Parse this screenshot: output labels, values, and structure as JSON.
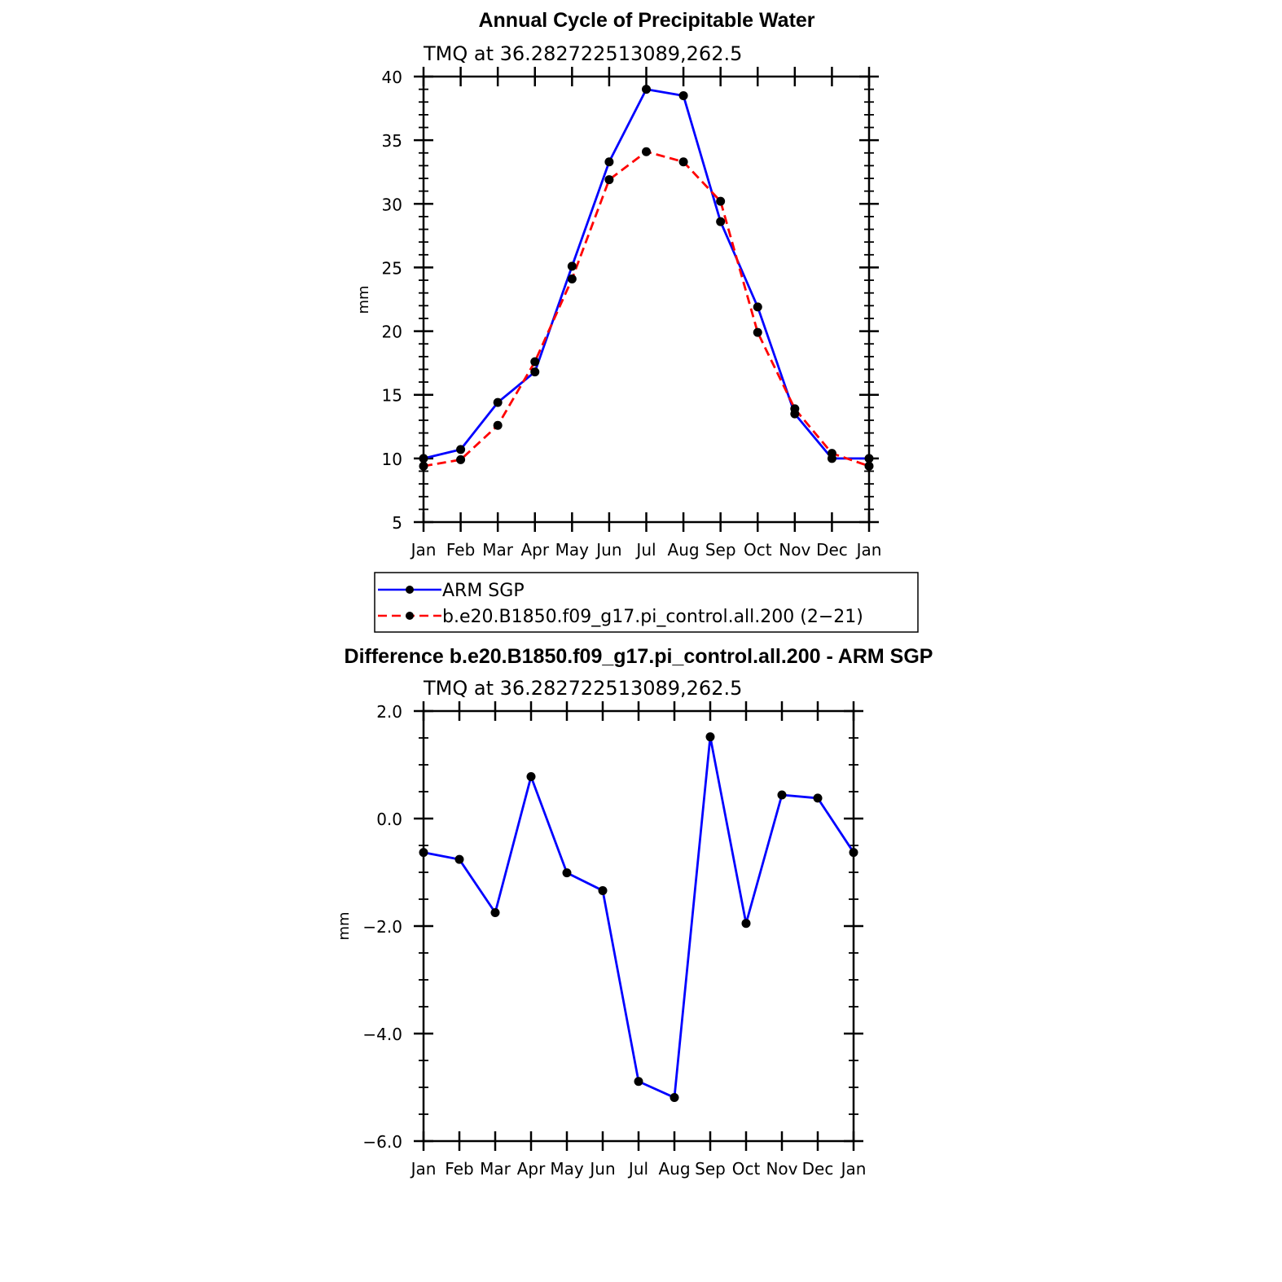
{
  "chart_data": [
    {
      "type": "line",
      "title": "Annual Cycle of Precipitable Water",
      "subtitle": "TMQ at 36.282722513089,262.5",
      "ylabel": "mm",
      "xlabel": "",
      "categories": [
        "Jan",
        "Feb",
        "Mar",
        "Apr",
        "May",
        "Jun",
        "Jul",
        "Aug",
        "Sep",
        "Oct",
        "Nov",
        "Dec",
        "Jan"
      ],
      "ylim": [
        5,
        40
      ],
      "yticks": [
        "5",
        "10",
        "15",
        "20",
        "25",
        "30",
        "35",
        "40"
      ],
      "ytick_values": [
        5,
        10,
        15,
        20,
        25,
        30,
        35,
        40
      ],
      "series": [
        {
          "name": "ARM SGP",
          "color": "#0000ff",
          "dash": "solid",
          "values": [
            10.0,
            10.7,
            14.4,
            16.8,
            25.1,
            33.3,
            39.0,
            38.5,
            28.6,
            21.9,
            13.5,
            10.0,
            10.0
          ]
        },
        {
          "name": "b.e20.B1850.f09_g17.pi_control.all.200 (2−21)",
          "color": "#ff0000",
          "dash": "dashed",
          "values": [
            9.4,
            9.9,
            12.6,
            17.6,
            24.1,
            31.9,
            34.1,
            33.3,
            30.2,
            19.9,
            13.9,
            10.4,
            9.4
          ]
        }
      ],
      "legend": "below"
    },
    {
      "type": "line",
      "title": "Difference b.e20.B1850.f09_g17.pi_control.all.200 - ARM SGP",
      "subtitle": "TMQ at 36.282722513089,262.5",
      "ylabel": "mm",
      "xlabel": "",
      "categories": [
        "Jan",
        "Feb",
        "Mar",
        "Apr",
        "May",
        "Jun",
        "Jul",
        "Aug",
        "Sep",
        "Oct",
        "Nov",
        "Dec",
        "Jan"
      ],
      "ylim": [
        -6.0,
        2.0
      ],
      "yticks": [
        "−6.0",
        "−4.0",
        "−2.0",
        "0.0",
        "2.0"
      ],
      "ytick_values": [
        -6.0,
        -4.0,
        -2.0,
        0.0,
        2.0
      ],
      "series": [
        {
          "color": "#0000ff",
          "dash": "solid",
          "values": [
            -0.63,
            -0.76,
            -1.75,
            0.78,
            -1.01,
            -1.34,
            -4.89,
            -5.19,
            1.52,
            -1.95,
            0.44,
            0.38,
            -0.63
          ]
        }
      ]
    }
  ]
}
